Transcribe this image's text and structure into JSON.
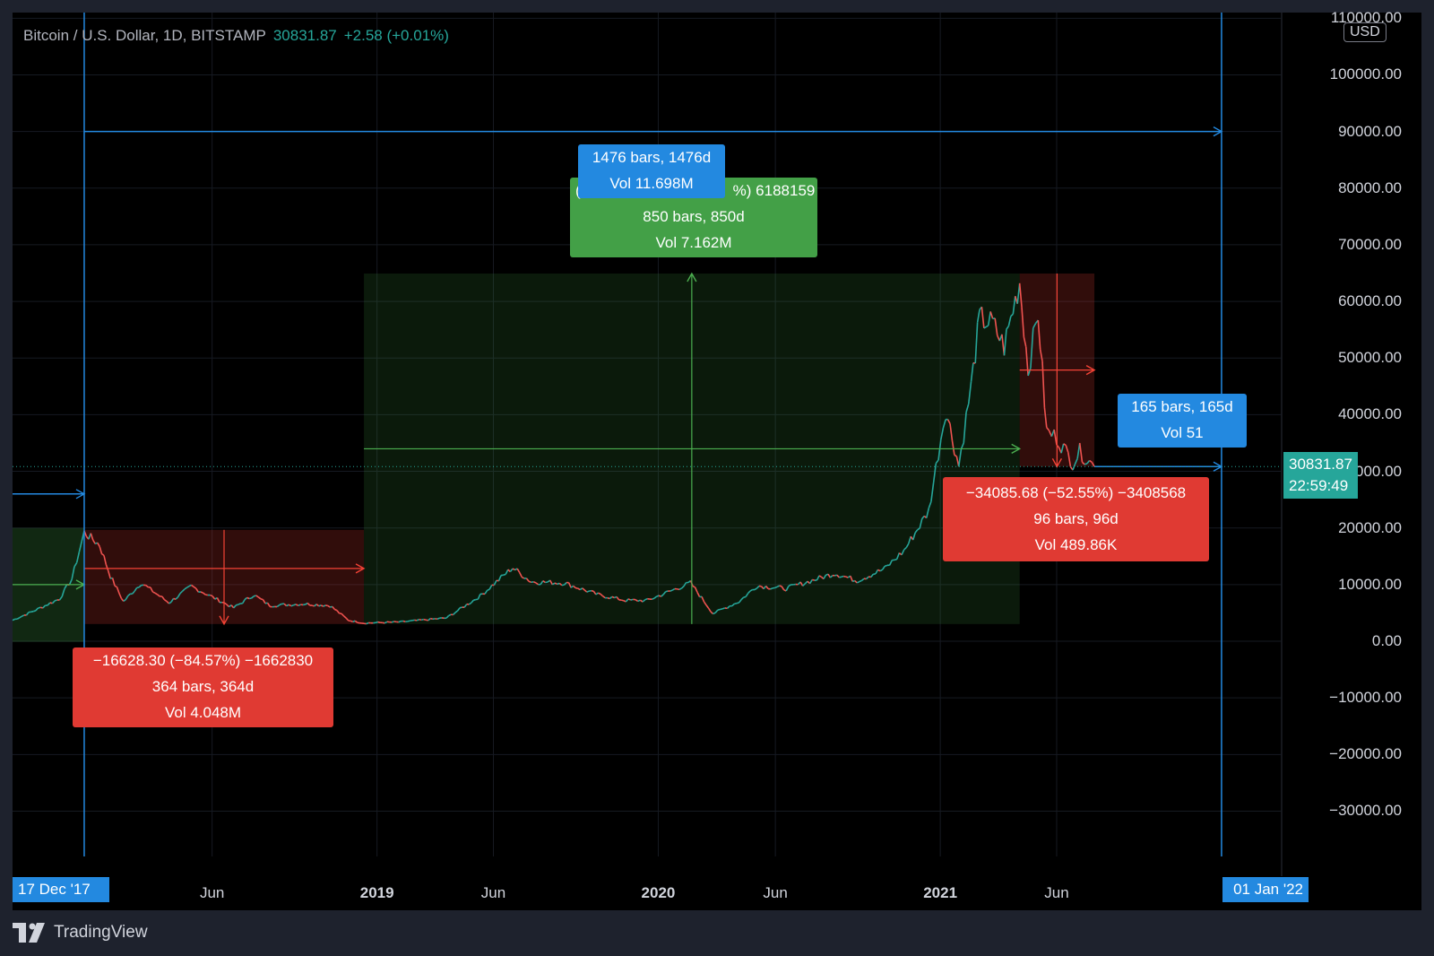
{
  "header": {
    "symbol": "Bitcoin / U.S. Dollar, 1D, BITSTAMP",
    "price": "30831.87",
    "change": "+2.58 (+0.01%)"
  },
  "currency_button": "USD",
  "price_tag": {
    "price": "30831.87",
    "countdown": "22:59:49"
  },
  "date_tags": {
    "start": "17 Dec '17",
    "end": "01 Jan '22"
  },
  "brand": "TradingView",
  "colors": {
    "up": "#26a69a",
    "down": "#ef5350",
    "blue": "#2389e0",
    "green_box": "#43a047",
    "red_box": "#e03a33",
    "background": "#000000"
  },
  "measures": {
    "fall_2018": {
      "line1": "−16628.30 (−84.57%) −1662830",
      "line2": "364 bars, 364d",
      "line3": "Vol 4.048M"
    },
    "rise_2021": {
      "line1": "(",
      "line1b": "%) 6188159",
      "line2": "850 bars, 850d",
      "line3": "Vol 7.162M"
    },
    "range_total": {
      "line1": "1476 bars, 1476d",
      "line2": "Vol 11.698M"
    },
    "fall_2021": {
      "line1": "−34085.68 (−52.55%) −3408568",
      "line2": "96 bars, 96d",
      "line3": "Vol 489.86K"
    },
    "range_recent": {
      "line1": "165 bars, 165d",
      "line2": "Vol 51"
    }
  },
  "chart_data": {
    "type": "line",
    "x_ticks": [
      {
        "label": "17 Dec '17",
        "date": "2017-12-17"
      },
      {
        "label": "Jun",
        "date": "2018-06-01"
      },
      {
        "label": "2019",
        "date": "2019-01-01"
      },
      {
        "label": "Jun",
        "date": "2019-06-01"
      },
      {
        "label": "2020",
        "date": "2020-01-01"
      },
      {
        "label": "Jun",
        "date": "2020-06-01"
      },
      {
        "label": "2021",
        "date": "2021-01-01"
      },
      {
        "label": "Jun",
        "date": "2021-06-01"
      },
      {
        "label": "01 Jan '22",
        "date": "2022-01-01"
      }
    ],
    "y_ticks": [
      "110000.00",
      "100000.00",
      "90000.00",
      "80000.00",
      "70000.00",
      "60000.00",
      "50000.00",
      "40000.00",
      "30000.00",
      "20000.00",
      "10000.00",
      "0.00",
      "−10000.00",
      "−20000.00",
      "−30000.00"
    ],
    "ylim": [
      -38000,
      111000
    ],
    "xlim": [
      "2017-09-15",
      "2022-03-20"
    ],
    "series": [
      {
        "x": [
          "2017-09-15",
          "2017-10-15",
          "2017-11-15",
          "2017-12-01",
          "2017-12-17",
          "2018-01-06",
          "2018-01-20",
          "2018-02-06",
          "2018-03-01",
          "2018-04-06",
          "2018-05-05",
          "2018-06-29",
          "2018-07-25",
          "2018-08-15",
          "2018-09-30",
          "2018-11-01",
          "2018-11-25",
          "2018-12-15",
          "2019-02-01",
          "2019-04-01",
          "2019-05-15",
          "2019-06-26",
          "2019-07-20",
          "2019-09-01",
          "2019-10-15",
          "2019-11-20",
          "2019-12-18",
          "2020-02-12",
          "2020-03-12",
          "2020-04-15",
          "2020-05-08",
          "2020-06-15",
          "2020-07-25",
          "2020-08-17",
          "2020-09-15",
          "2020-10-21",
          "2020-11-15",
          "2020-12-17",
          "2021-01-08",
          "2021-01-25",
          "2021-02-10",
          "2021-02-21",
          "2021-03-10",
          "2021-03-25",
          "2021-04-14",
          "2021-04-25",
          "2021-05-08",
          "2021-05-19",
          "2021-06-01",
          "2021-06-22",
          "2021-07-01",
          "2021-07-20"
        ],
        "values": [
          3700,
          5500,
          7500,
          11000,
          19200,
          17000,
          11500,
          7000,
          10300,
          6800,
          9700,
          5900,
          8200,
          6300,
          6600,
          6300,
          3700,
          3200,
          3400,
          4100,
          8000,
          13000,
          10500,
          10300,
          8200,
          7200,
          7200,
          10300,
          4900,
          7000,
          9800,
          9300,
          11000,
          12000,
          10700,
          12800,
          16000,
          23000,
          41000,
          31000,
          45000,
          57000,
          56000,
          52000,
          63500,
          48000,
          58000,
          37000,
          36000,
          31600,
          33500,
          30831.87
        ]
      }
    ],
    "annotations": {
      "fall_2018": {
        "from": "2017-12-17",
        "to": "2018-12-15",
        "high": 19666,
        "low": 3038
      },
      "rise_2021": {
        "from": "2018-12-15",
        "to": "2021-04-14",
        "low": 3038,
        "high": 64920
      },
      "fall_2021": {
        "from": "2021-04-14",
        "to": "2021-07-20",
        "high": 64920,
        "low": 30831.87
      },
      "range_total": {
        "from": "2017-12-17",
        "to": "2022-01-01",
        "level": 90000
      },
      "range_recent": {
        "from": "2021-07-20",
        "to": "2022-01-01",
        "level": 30831.87
      }
    }
  }
}
